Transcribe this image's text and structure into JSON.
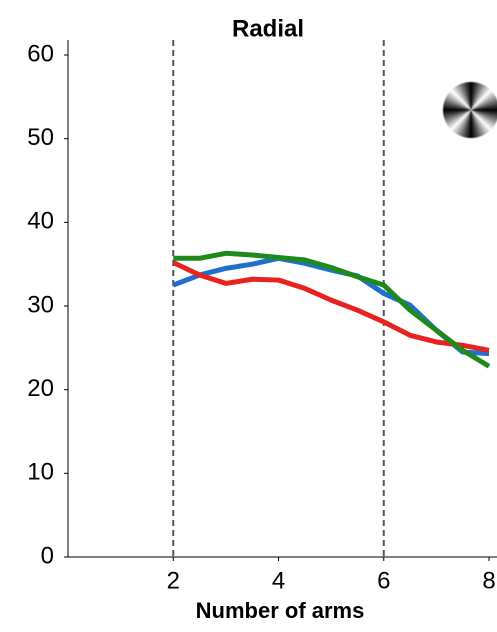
{
  "chart_data": {
    "type": "line",
    "title": "Radial",
    "xlabel": "Number of arms",
    "x": [
      2,
      2.5,
      3,
      3.5,
      4,
      4.5,
      5,
      5.5,
      6,
      6.5,
      7,
      7.5,
      8
    ],
    "series": [
      {
        "color": "#1f6fce",
        "values": [
          32.5,
          33.7,
          34.5,
          35.0,
          35.7,
          35.1,
          34.3,
          33.6,
          31.5,
          30.1,
          27.1,
          24.5,
          24.3
        ]
      },
      {
        "color": "#e8231f",
        "values": [
          35.2,
          33.7,
          32.7,
          33.2,
          33.1,
          32.1,
          30.7,
          29.5,
          28.1,
          26.5,
          25.7,
          25.3,
          24.7
        ]
      },
      {
        "color": "#1e8a1e",
        "values": [
          35.7,
          35.7,
          36.3,
          36.1,
          35.8,
          35.5,
          34.6,
          33.5,
          32.5,
          29.5,
          27.1,
          24.7,
          22.8
        ]
      }
    ],
    "vlines": [
      2,
      6
    ],
    "xlim": [
      0,
      8
    ],
    "xticks": [
      2,
      4,
      6,
      8
    ],
    "ylim": [
      0,
      60
    ],
    "yticks": [
      0,
      10,
      20,
      30,
      40,
      50,
      60
    ]
  }
}
